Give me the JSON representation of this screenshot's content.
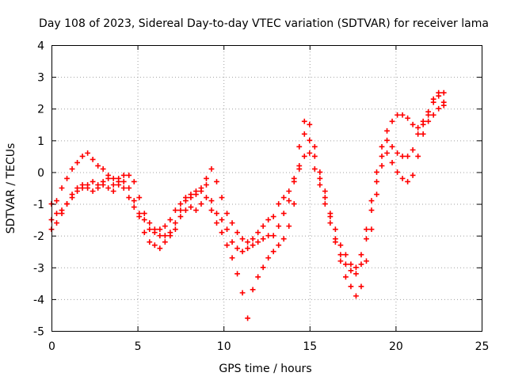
{
  "chart_data": {
    "type": "scatter",
    "title": "Day 108 of 2023, Sidereal Day-to-day VTEC variation (SDTVAR) for receiver lama",
    "xlabel": "GPS time / hours",
    "ylabel": "SDTVAR / TECUs",
    "xlim": [
      0,
      25
    ],
    "ylim": [
      -5,
      4
    ],
    "xticks": [
      0,
      5,
      10,
      15,
      20,
      25
    ],
    "yticks": [
      -5,
      -4,
      -3,
      -2,
      -1,
      0,
      1,
      2,
      3,
      4
    ],
    "grid": true,
    "marker": "+",
    "color": "#ff0000",
    "series": [
      {
        "x": [
          0,
          0.3,
          0.6,
          0.9,
          1.2,
          1.5,
          1.8,
          2.1,
          2.4,
          2.7,
          3.0,
          3.3,
          3.6,
          3.9,
          4.2,
          4.5,
          4.8,
          5.1,
          5.4,
          5.7,
          6.0,
          6.3,
          6.6,
          6.9,
          7.2,
          7.5,
          7.8,
          8.1,
          8.4,
          8.7,
          9.0,
          9.3,
          9.6,
          9.9,
          10.2,
          10.5,
          10.8,
          11.1,
          11.4,
          11.7,
          12.0,
          12.3,
          12.6,
          12.9,
          13.2,
          13.5,
          13.8,
          14.1,
          14.4,
          14.7,
          15.0,
          15.3,
          15.6,
          15.9,
          16.2,
          16.5,
          16.8,
          17.1,
          17.4,
          17.7,
          18.0,
          18.3,
          18.6,
          18.9,
          19.2,
          19.5,
          19.8,
          20.1,
          20.4,
          20.7,
          21.0,
          21.3,
          21.6,
          21.9,
          22.2,
          22.5,
          22.8
        ],
        "y": [
          -1.5,
          -1.3,
          -1.2,
          -1.0,
          -0.8,
          -0.6,
          -0.5,
          -0.4,
          -0.3,
          -0.4,
          -0.3,
          -0.2,
          -0.4,
          -0.2,
          -0.1,
          -0.1,
          -0.3,
          -0.8,
          -1.3,
          -1.8,
          -1.9,
          -1.8,
          -1.7,
          -1.5,
          -1.2,
          -1.0,
          -0.8,
          -0.7,
          -0.6,
          -0.5,
          -0.4,
          -0.9,
          -1.3,
          -1.5,
          -1.8,
          -2.2,
          -2.4,
          -2.5,
          -2.4,
          -2.3,
          -2.2,
          -2.1,
          -2.0,
          -2.0,
          -1.7,
          -1.3,
          -0.9,
          -0.2,
          0.8,
          1.2,
          1.0,
          0.5,
          -0.2,
          -0.8,
          -1.3,
          -1.8,
          -2.3,
          -2.6,
          -2.9,
          -3.0,
          -2.6,
          -1.8,
          -0.9,
          0.0,
          0.8,
          1.0,
          0.8,
          0.6,
          0.5,
          0.5,
          0.7,
          1.2,
          1.6,
          1.9,
          2.2,
          2.4,
          2.5
        ]
      },
      {
        "x": [
          0,
          0.3,
          0.6,
          0.9,
          1.2,
          1.5,
          1.8,
          2.1,
          2.4,
          2.7,
          3.0,
          3.3,
          3.6,
          3.9,
          4.2,
          4.5,
          4.8,
          5.1,
          5.4,
          5.7,
          6.0,
          6.3,
          6.6,
          6.9,
          7.2,
          7.5,
          7.8,
          8.1,
          8.4,
          8.7,
          9.0,
          9.3,
          9.6,
          9.9,
          10.2,
          10.5,
          10.8,
          11.1,
          11.4,
          11.7,
          12.0,
          12.3,
          12.6,
          12.9,
          13.2,
          13.5,
          13.8,
          14.1,
          14.4,
          14.7,
          15.0,
          15.3,
          15.6,
          15.9,
          16.2,
          16.5,
          16.8,
          17.1,
          17.4,
          17.7,
          18.0,
          18.3,
          18.6,
          18.9,
          19.2,
          19.5,
          19.8,
          20.1,
          20.4,
          20.7,
          21.0,
          21.3,
          21.6,
          21.9,
          22.2,
          22.5,
          22.8
        ],
        "y": [
          -1.8,
          -1.6,
          -1.3,
          -1.0,
          -0.7,
          -0.5,
          -0.4,
          -0.5,
          -0.6,
          -0.5,
          -0.4,
          -0.5,
          -0.6,
          -0.4,
          -0.3,
          -0.5,
          -0.9,
          -1.4,
          -1.9,
          -2.2,
          -2.3,
          -2.4,
          -2.2,
          -2.0,
          -1.8,
          -1.4,
          -1.2,
          -1.1,
          -1.2,
          -1.0,
          -0.8,
          -1.2,
          -1.6,
          -1.9,
          -2.3,
          -2.7,
          -3.2,
          -3.8,
          -4.6,
          -3.7,
          -3.3,
          -3.0,
          -2.7,
          -2.5,
          -2.3,
          -2.1,
          -1.7,
          -1.0,
          0.2,
          1.6,
          1.5,
          0.8,
          0.0,
          -0.6,
          -1.4,
          -2.1,
          -2.8,
          -3.3,
          -3.6,
          -3.9,
          -3.6,
          -2.8,
          -1.8,
          -0.7,
          0.2,
          0.6,
          0.3,
          0.0,
          -0.2,
          -0.3,
          -0.1,
          0.5,
          1.2,
          1.8,
          2.3,
          2.5,
          2.1
        ]
      },
      {
        "x": [
          0,
          0.3,
          0.6,
          0.9,
          1.2,
          1.5,
          1.8,
          2.1,
          2.4,
          2.7,
          3.0,
          3.3,
          3.6,
          3.9,
          4.2,
          4.5,
          4.8,
          5.1,
          5.4,
          5.7,
          6.0,
          6.3,
          6.6,
          6.9,
          7.2,
          7.5,
          7.8,
          8.1,
          8.4,
          8.7,
          9.0,
          9.3,
          9.6,
          9.9,
          10.2,
          10.5,
          10.8,
          11.1,
          11.4,
          11.7,
          12.0,
          12.3,
          12.6,
          12.9,
          13.2,
          13.5,
          13.8,
          14.1,
          14.4,
          14.7,
          15.0,
          15.3,
          15.6,
          15.9,
          16.2,
          16.5,
          16.8,
          17.1,
          17.4,
          17.7,
          18.0,
          18.3,
          18.6,
          18.9,
          19.2,
          19.5,
          19.8,
          20.1,
          20.4,
          20.7,
          21.0,
          21.3,
          21.6,
          21.9,
          22.2,
          22.5,
          22.8
        ],
        "y": [
          -1.0,
          -0.9,
          -0.5,
          -0.2,
          0.1,
          0.3,
          0.5,
          0.6,
          0.4,
          0.2,
          0.1,
          -0.1,
          -0.2,
          -0.3,
          -0.5,
          -0.8,
          -1.1,
          -1.3,
          -1.5,
          -1.6,
          -1.8,
          -2.0,
          -2.0,
          -1.9,
          -1.6,
          -1.2,
          -0.9,
          -0.8,
          -0.7,
          -0.6,
          -0.2,
          0.1,
          -0.3,
          -0.8,
          -1.3,
          -1.6,
          -1.9,
          -2.1,
          -2.2,
          -2.1,
          -1.9,
          -1.7,
          -1.5,
          -1.4,
          -1.0,
          -0.8,
          -0.6,
          -0.3,
          0.1,
          0.5,
          0.6,
          0.1,
          -0.4,
          -1.0,
          -1.6,
          -2.2,
          -2.6,
          -2.9,
          -3.1,
          -3.2,
          -2.9,
          -2.1,
          -1.2,
          -0.3,
          0.5,
          1.3,
          1.6,
          1.8,
          1.8,
          1.7,
          1.5,
          1.4,
          1.5,
          1.6,
          1.8,
          2.0,
          2.2
        ]
      }
    ]
  }
}
